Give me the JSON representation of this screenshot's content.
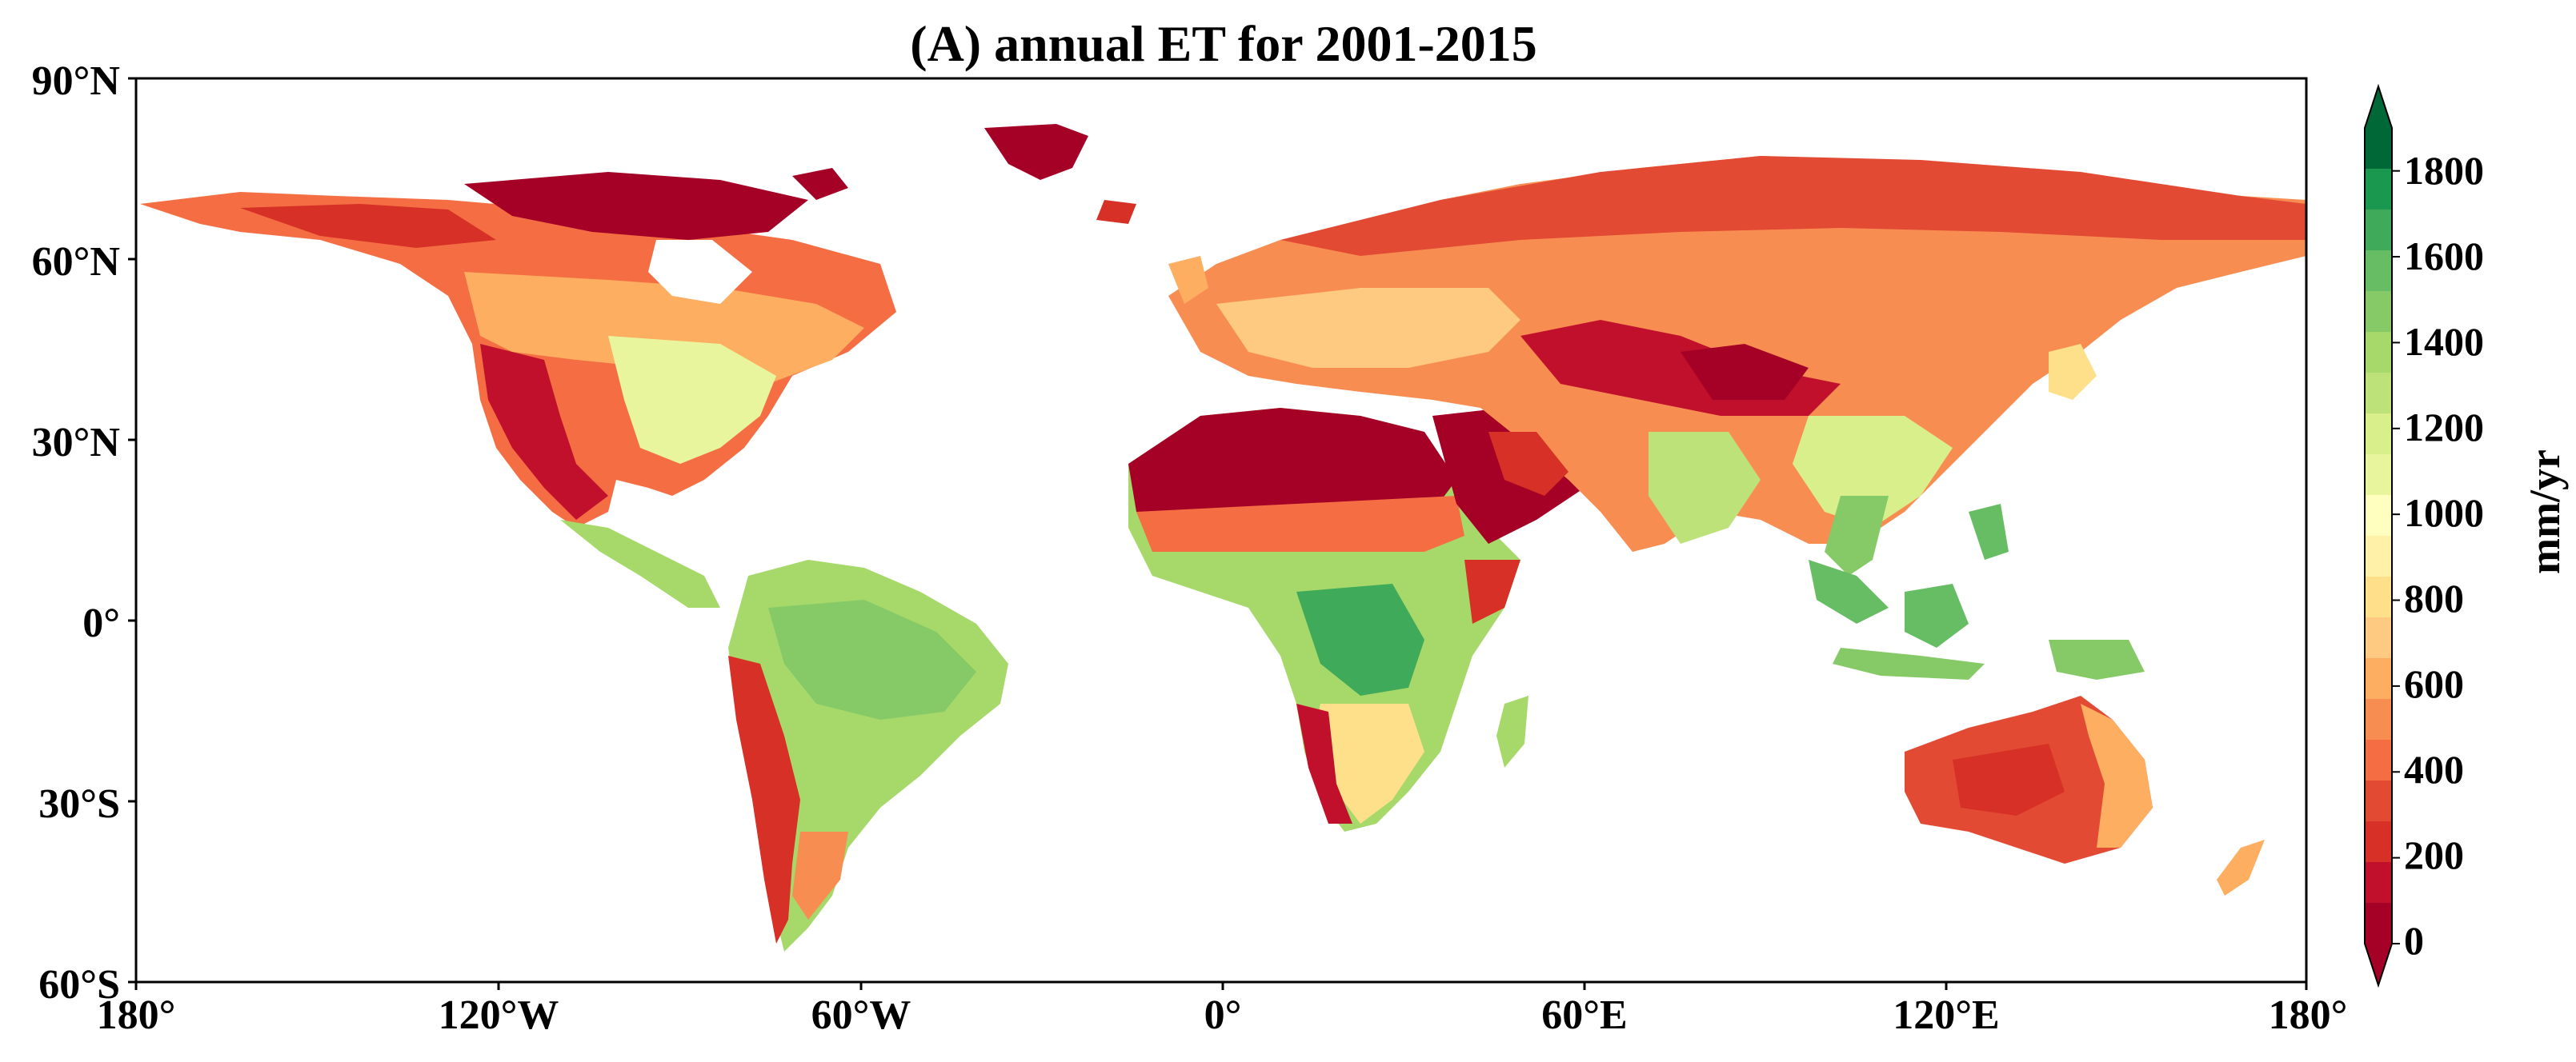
{
  "title": "(A) annual ET for 2001-2015",
  "lat_labels": [
    "90°N",
    "60°N",
    "30°N",
    "0°",
    "30°S",
    "60°S"
  ],
  "lon_labels": [
    "180°",
    "120°W",
    "60°W",
    "0°",
    "60°E",
    "120°E",
    "180°"
  ],
  "colorbar": {
    "unit": "mm/yr",
    "min": 0,
    "max": 1900,
    "tick_labels": [
      "1800",
      "1600",
      "1400",
      "1200",
      "1000",
      "800",
      "600",
      "400",
      "200",
      "0"
    ],
    "colors": [
      "#a50026",
      "#c1102b",
      "#d73027",
      "#e34a33",
      "#f46d43",
      "#f88d52",
      "#fdae61",
      "#fec980",
      "#fee08b",
      "#fff1a8",
      "#ffffbf",
      "#e8f59c",
      "#d9ef8b",
      "#bde27a",
      "#a6d96a",
      "#85ca66",
      "#66bd63",
      "#3faa59",
      "#1a9850",
      "#006837"
    ]
  },
  "map": {
    "lon_range": [
      -180,
      180
    ],
    "lat_range": [
      -60,
      90
    ]
  }
}
